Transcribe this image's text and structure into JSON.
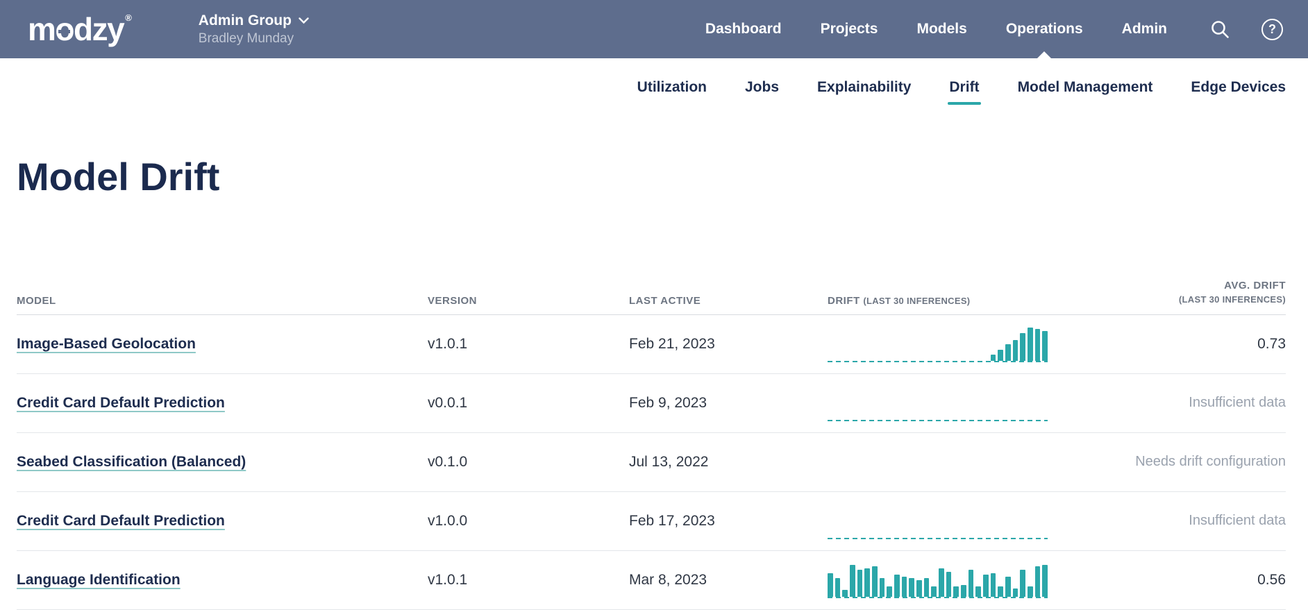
{
  "brand": {
    "logo_parts": [
      "m",
      "o",
      "dzy"
    ],
    "registered": "®"
  },
  "colors": {
    "topbar_bg": "#5e6d8d",
    "accent_teal": "#2ba7a9",
    "navy_text": "#1e2d4f",
    "muted_text": "#9aa2ae"
  },
  "header": {
    "group_name": "Admin Group",
    "user_name": "Bradley Munday",
    "nav": [
      "Dashboard",
      "Projects",
      "Models",
      "Operations",
      "Admin"
    ],
    "active_nav": "Operations",
    "help_glyph": "?"
  },
  "subnav": {
    "items": [
      "Utilization",
      "Jobs",
      "Explainability",
      "Drift",
      "Model Management",
      "Edge Devices"
    ],
    "active": "Drift"
  },
  "page": {
    "title": "Model Drift"
  },
  "table": {
    "headers": {
      "model": "MODEL",
      "version": "VERSION",
      "last_active": "LAST ACTIVE",
      "drift": "DRIFT",
      "drift_note": "(LAST 30 INFERENCES)",
      "avg_drift": "AVG. DRIFT",
      "avg_drift_note": "(LAST 30 INFERENCES)"
    },
    "rows": [
      {
        "model": "Image-Based Geolocation",
        "version": "v1.0.1",
        "last_active": "Feb 21, 2023",
        "avg_drift": "0.73",
        "avg_is_status": false,
        "chart": {
          "type": "bar",
          "baseline": true,
          "values": [
            0,
            0,
            0,
            0,
            0,
            0,
            0,
            0,
            0,
            0,
            0,
            0,
            0,
            0,
            0,
            0,
            0,
            0,
            0,
            0,
            0,
            0,
            0.18,
            0.32,
            0.5,
            0.62,
            0.82,
            1,
            0.95,
            0.88
          ]
        }
      },
      {
        "model": "Credit Card Default Prediction",
        "version": "v0.0.1",
        "last_active": "Feb 9, 2023",
        "avg_drift": "Insufficient data",
        "avg_is_status": true,
        "chart": {
          "type": "bar",
          "baseline": true,
          "values": []
        }
      },
      {
        "model": "Seabed Classification (Balanced)",
        "version": "v0.1.0",
        "last_active": "Jul 13, 2022",
        "avg_drift": "Needs drift configuration",
        "avg_is_status": true,
        "chart": null
      },
      {
        "model": "Credit Card Default Prediction",
        "version": "v1.0.0",
        "last_active": "Feb 17, 2023",
        "avg_drift": "Insufficient data",
        "avg_is_status": true,
        "chart": {
          "type": "bar",
          "baseline": true,
          "values": []
        }
      },
      {
        "model": "Language Identification",
        "version": "v1.0.1",
        "last_active": "Mar 8, 2023",
        "avg_drift": "0.56",
        "avg_is_status": false,
        "chart": {
          "type": "bar",
          "baseline": true,
          "values": [
            0.7,
            0.55,
            0.2,
            0.95,
            0.8,
            0.85,
            0.9,
            0.55,
            0.3,
            0.65,
            0.6,
            0.55,
            0.5,
            0.55,
            0.3,
            0.85,
            0.75,
            0.3,
            0.35,
            0.8,
            0.3,
            0.65,
            0.7,
            0.3,
            0.6,
            0.25,
            0.8,
            0.3,
            0.9,
            0.95
          ]
        }
      }
    ]
  }
}
